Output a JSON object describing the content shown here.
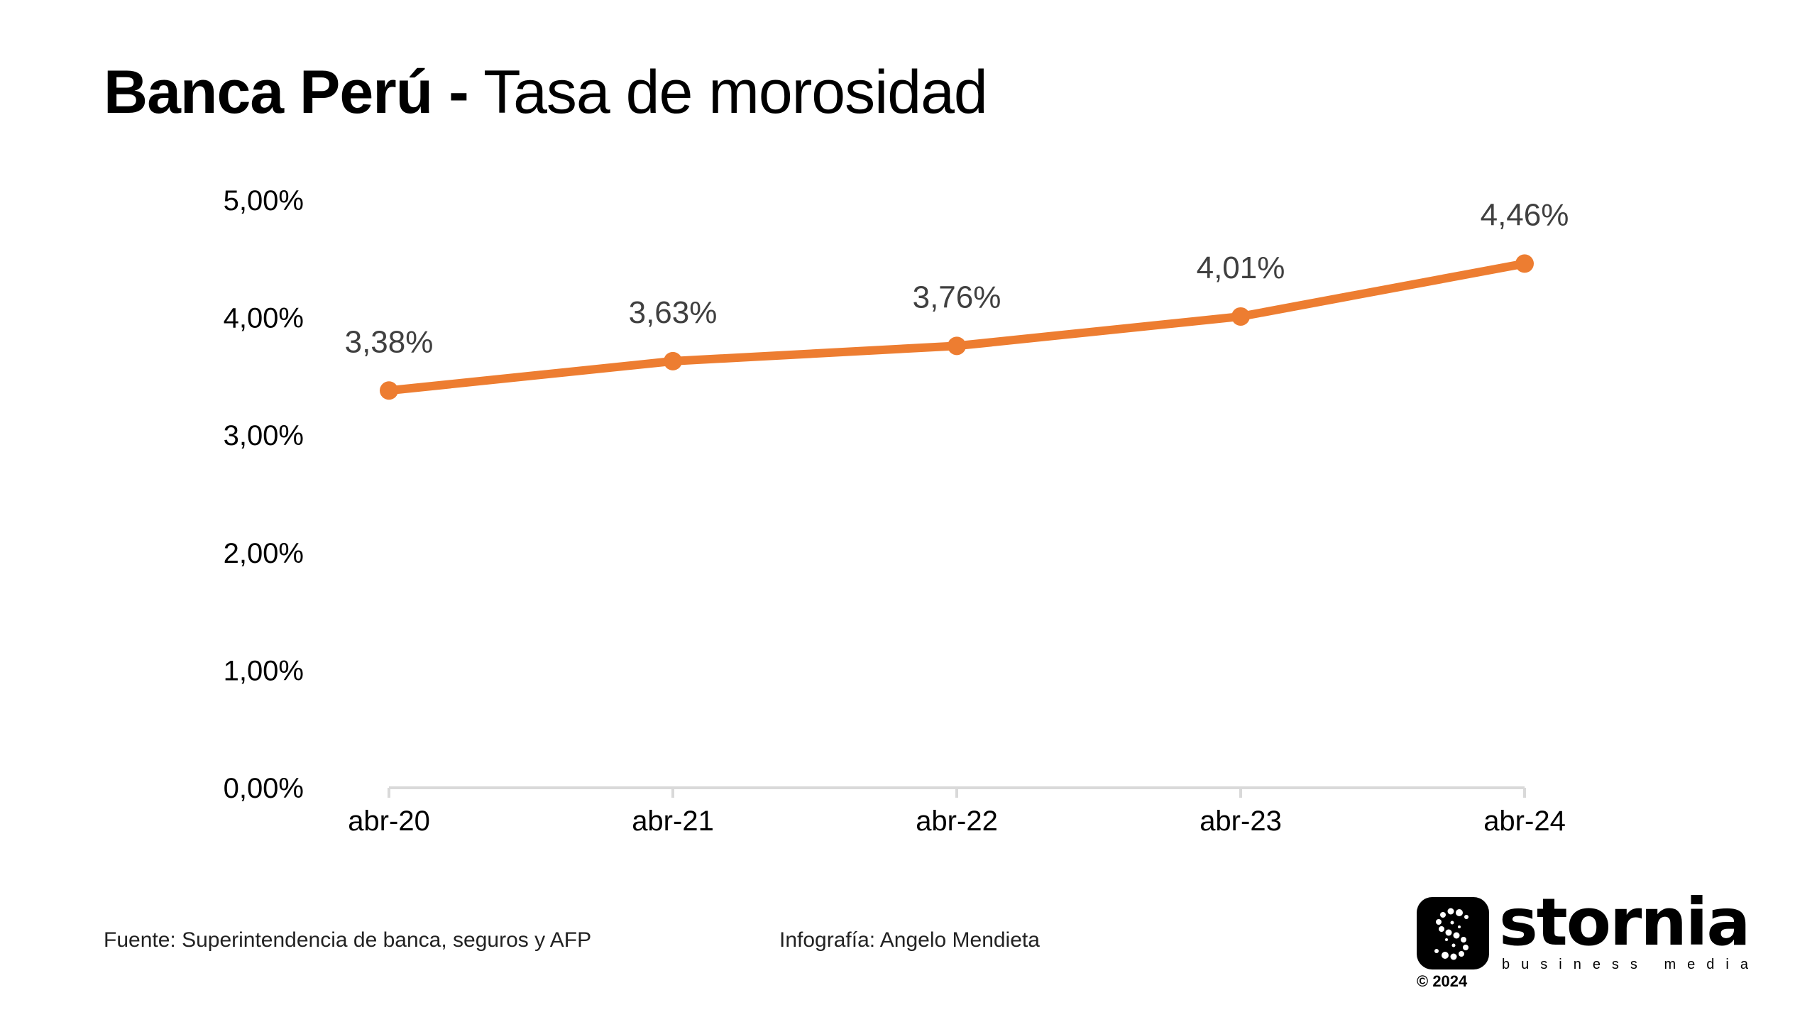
{
  "title": {
    "bold": "Banca Perú -",
    "regular": "Tasa de morosidad"
  },
  "chart_data": {
    "type": "line",
    "title": "Banca Perú - Tasa de morosidad",
    "categories": [
      "abr-20",
      "abr-21",
      "abr-22",
      "abr-23",
      "abr-24"
    ],
    "series": [
      {
        "values": [
          3.38,
          3.63,
          3.76,
          4.01,
          4.46
        ],
        "labels": [
          "3,38%",
          "3,63%",
          "3,76%",
          "4,01%",
          "4,46%"
        ],
        "color": "#ED7D31"
      }
    ],
    "yticks": [
      0,
      1,
      2,
      3,
      4,
      5
    ],
    "ytick_labels": [
      "0,00%",
      "1,00%",
      "2,00%",
      "3,00%",
      "4,00%",
      "5,00%"
    ],
    "ylim": [
      0,
      5
    ],
    "grid": false,
    "axis_color": "#D9D9D9"
  },
  "footer": {
    "source": "Fuente: Superintendencia de banca, seguros y AFP",
    "credit": "Infografía: Angelo Mendieta"
  },
  "logo": {
    "name": "stornia",
    "tagline": "business media",
    "copyright": "© 2024",
    "icon": "stornia-s-icon"
  }
}
